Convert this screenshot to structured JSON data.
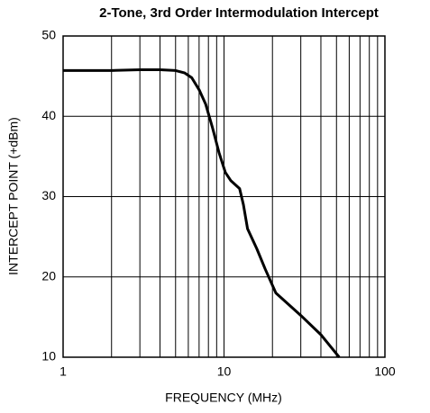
{
  "chart_data": {
    "type": "line",
    "title": "2-Tone, 3rd Order Intermodulation Intercept",
    "xlabel": "FREQUENCY (MHz)",
    "ylabel": "INTERCEPT POINT (+dBm)",
    "log_x": true,
    "grid": true,
    "xlim": [
      1,
      100
    ],
    "xticks": [
      1,
      10,
      100
    ],
    "x_minor_ticks": [
      2,
      3,
      4,
      5,
      6,
      7,
      8,
      9,
      20,
      30,
      40,
      50,
      60,
      70,
      80,
      90
    ],
    "ylim": [
      10,
      50
    ],
    "yticks": [
      10,
      20,
      30,
      40,
      50
    ],
    "series": [
      {
        "color": "#000000",
        "x": [
          1,
          2,
          3,
          4,
          5,
          5.7,
          6.3,
          7,
          7.7,
          8.5,
          9.3,
          10.2,
          11,
          12.5,
          13.2,
          14,
          16,
          18,
          21,
          30,
          40,
          52
        ],
        "values": [
          45.7,
          45.7,
          45.8,
          45.8,
          45.7,
          45.4,
          44.8,
          43.3,
          41.5,
          38.5,
          35.5,
          33,
          32,
          31,
          29,
          26,
          23.5,
          21,
          18,
          15.2,
          12.8,
          10
        ]
      }
    ]
  }
}
